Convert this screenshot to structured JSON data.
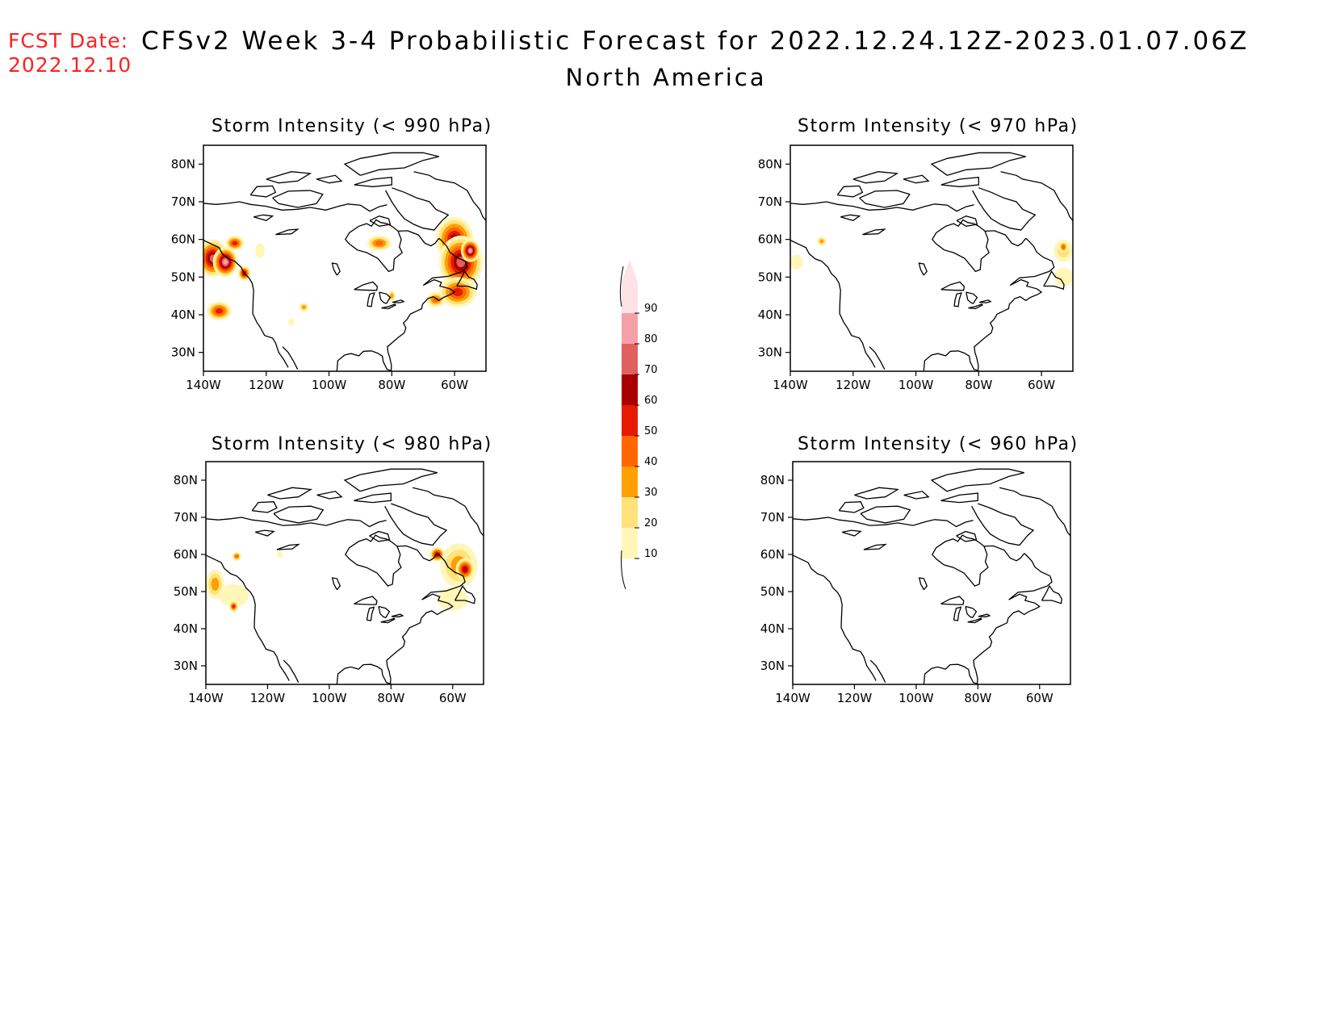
{
  "header": {
    "fcst_label": "FCST Date:",
    "fcst_date": "2022.12.10",
    "title": "CFSv2 Week 3-4 Probabilistic Forecast for 2022.12.24.12Z-2023.01.07.06Z",
    "subtitle": "North America"
  },
  "colors": {
    "levels": [
      "#fff6b8",
      "#ffe27a",
      "#ff9f00",
      "#ff6600",
      "#e51a00",
      "#a80000",
      "#e06060",
      "#f5a0a8",
      "#fde2e6"
    ],
    "header_red": "#ff2020"
  },
  "axes": {
    "lat_labels": [
      "80N",
      "70N",
      "60N",
      "50N",
      "40N",
      "30N"
    ],
    "lon_labels": [
      "140W",
      "120W",
      "100W",
      "80W",
      "60W"
    ]
  },
  "panels": [
    {
      "title": "Storm Intensity (< 990 hPa)",
      "blobs": [
        {
          "lon": -137,
          "lat": 55,
          "rx": 5,
          "ry": 5,
          "level": 7
        },
        {
          "lon": -133,
          "lat": 54,
          "rx": 4,
          "ry": 4,
          "level": 8
        },
        {
          "lon": -135,
          "lat": 41,
          "rx": 4,
          "ry": 2.5,
          "level": 5
        },
        {
          "lon": -130,
          "lat": 59,
          "rx": 3,
          "ry": 2,
          "level": 5
        },
        {
          "lon": -127,
          "lat": 51,
          "rx": 2,
          "ry": 2,
          "level": 6
        },
        {
          "lon": -84,
          "lat": 59,
          "rx": 4,
          "ry": 2,
          "level": 4
        },
        {
          "lon": -60,
          "lat": 60,
          "rx": 6,
          "ry": 6,
          "level": 6
        },
        {
          "lon": -58,
          "lat": 54,
          "rx": 7,
          "ry": 7,
          "level": 7
        },
        {
          "lon": -55,
          "lat": 57,
          "rx": 3,
          "ry": 3,
          "level": 8
        },
        {
          "lon": -59,
          "lat": 46,
          "rx": 6,
          "ry": 4,
          "level": 5
        },
        {
          "lon": -66,
          "lat": 44,
          "rx": 3,
          "ry": 2,
          "level": 4
        },
        {
          "lon": -108,
          "lat": 42,
          "rx": 1.5,
          "ry": 1.2,
          "level": 3
        },
        {
          "lon": -112,
          "lat": 38,
          "rx": 1,
          "ry": 1,
          "level": 1
        },
        {
          "lon": -122,
          "lat": 57,
          "rx": 1.5,
          "ry": 2,
          "level": 1
        },
        {
          "lon": -80,
          "lat": 45,
          "rx": 1.2,
          "ry": 1.5,
          "level": 3
        }
      ]
    },
    {
      "title": "Storm Intensity (< 970 hPa)",
      "blobs": [
        {
          "lon": -138,
          "lat": 54,
          "rx": 2,
          "ry": 2,
          "level": 1
        },
        {
          "lon": -130,
          "lat": 59.5,
          "rx": 1.5,
          "ry": 1.2,
          "level": 3
        },
        {
          "lon": -53,
          "lat": 57,
          "rx": 3,
          "ry": 3,
          "level": 2
        },
        {
          "lon": -53,
          "lat": 58,
          "rx": 1.5,
          "ry": 1.5,
          "level": 4
        },
        {
          "lon": -53,
          "lat": 50,
          "rx": 3,
          "ry": 2.5,
          "level": 1
        }
      ]
    },
    {
      "title": "Storm Intensity (< 980 hPa)",
      "blobs": [
        {
          "lon": -137,
          "lat": 52,
          "rx": 3,
          "ry": 4,
          "level": 3
        },
        {
          "lon": -131,
          "lat": 49,
          "rx": 5,
          "ry": 3,
          "level": 1
        },
        {
          "lon": -130,
          "lat": 59.5,
          "rx": 1.5,
          "ry": 1.2,
          "level": 4
        },
        {
          "lon": -131,
          "lat": 46,
          "rx": 1.5,
          "ry": 1.5,
          "level": 5
        },
        {
          "lon": -65,
          "lat": 60,
          "rx": 2.5,
          "ry": 2,
          "level": 6
        },
        {
          "lon": -58,
          "lat": 57,
          "rx": 6,
          "ry": 6,
          "level": 3
        },
        {
          "lon": -56,
          "lat": 56,
          "rx": 3,
          "ry": 3,
          "level": 6
        },
        {
          "lon": -60,
          "lat": 48,
          "rx": 5,
          "ry": 3,
          "level": 1
        },
        {
          "lon": -116,
          "lat": 60,
          "rx": 1,
          "ry": 1,
          "level": 1
        }
      ]
    },
    {
      "title": "Storm Intensity (< 960 hPa)",
      "blobs": []
    }
  ],
  "colorbar": {
    "labels": [
      "90",
      "80",
      "70",
      "60",
      "50",
      "40",
      "30",
      "20",
      "10"
    ]
  }
}
